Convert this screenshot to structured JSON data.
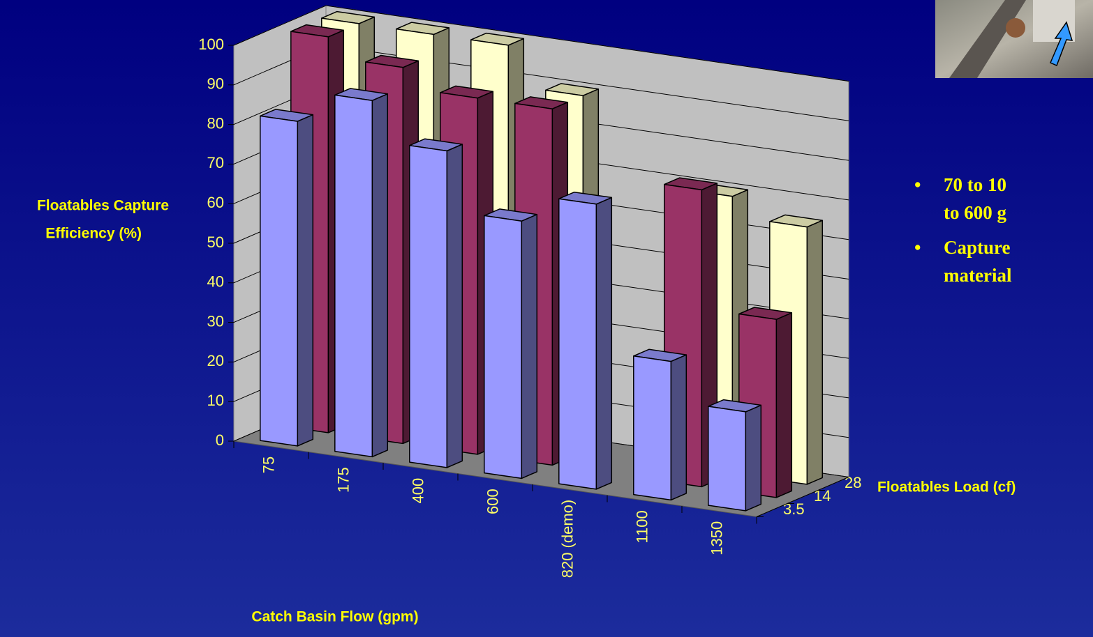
{
  "chart_data": {
    "type": "bar3d",
    "categories": [
      "75",
      "175",
      "400",
      "600",
      "820 (demo)",
      "1100",
      "1350"
    ],
    "series": [
      {
        "name": "3.5",
        "color": "#9999ff",
        "values": [
          82,
          90,
          80,
          65,
          72,
          35,
          25
        ]
      },
      {
        "name": "14",
        "color": "#993366",
        "values": [
          100,
          95,
          90,
          90,
          null,
          75,
          45
        ]
      },
      {
        "name": "28",
        "color": "#ffffcc",
        "values": [
          100,
          100,
          100,
          90,
          null,
          70,
          65
        ]
      }
    ],
    "ylim": [
      0,
      100
    ],
    "yticks": [
      0,
      10,
      20,
      30,
      40,
      50,
      60,
      70,
      80,
      90,
      100
    ],
    "grid": true,
    "x_label": "Catch Basin Flow (gpm)",
    "y_label": [
      "Floatables Capture",
      "Efficiency (%)"
    ],
    "z_label": "Floatables Load (cf)"
  },
  "bullets": [
    [
      "70 to 10",
      "to 600 g"
    ],
    [
      "Capture",
      "material"
    ]
  ]
}
